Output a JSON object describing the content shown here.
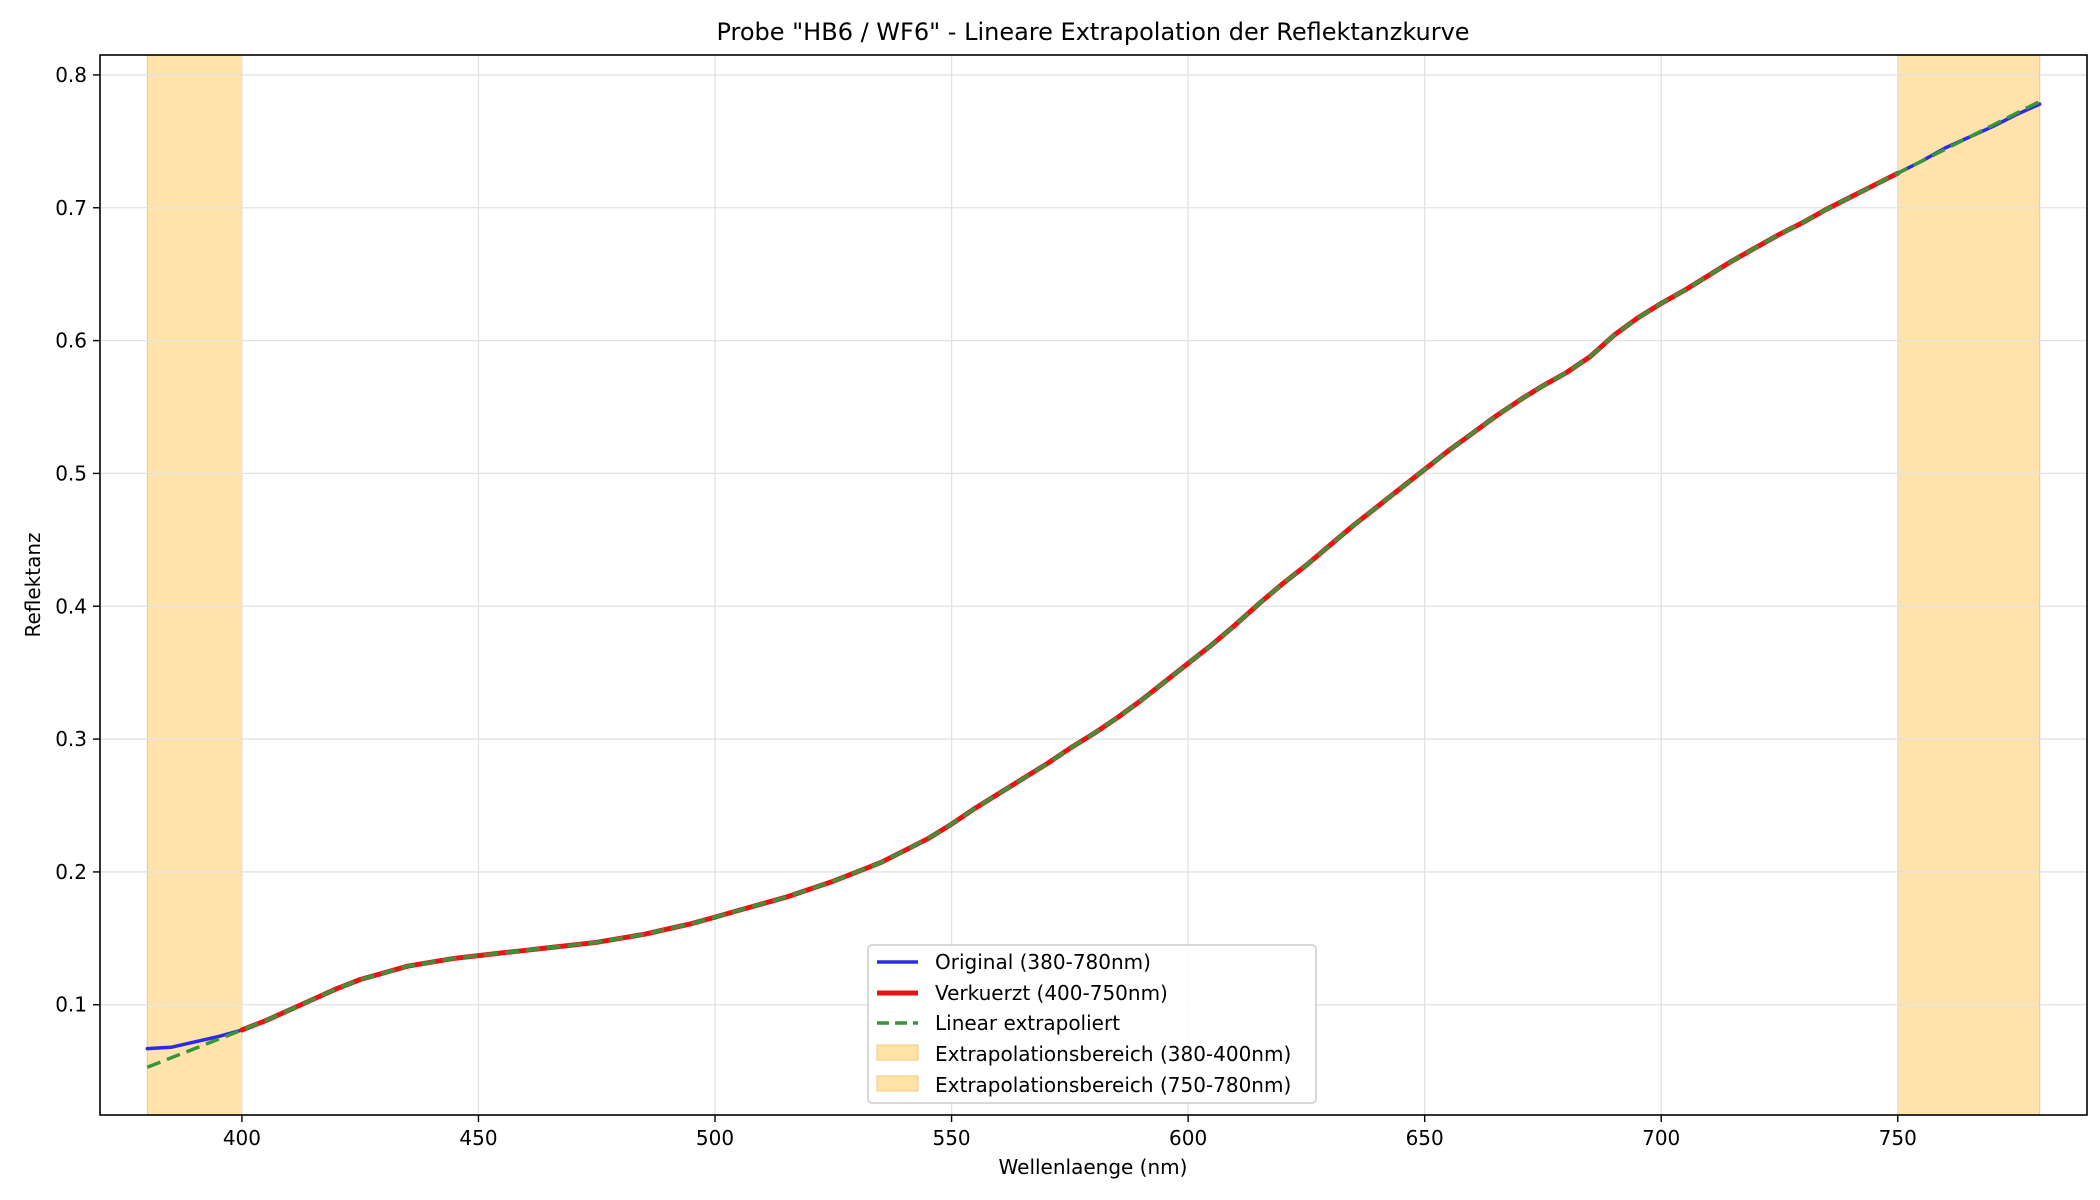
{
  "chart_data": {
    "type": "line",
    "title": "Probe \"HB6 / WF6\" - Lineare Extrapolation der Reflektanzkurve",
    "xlabel": "Wellenlaenge (nm)",
    "ylabel": "Reflektanz",
    "xlim": [
      370,
      790
    ],
    "ylim": [
      0.017,
      0.815
    ],
    "xticks": [
      400,
      450,
      500,
      550,
      600,
      650,
      700,
      750
    ],
    "yticks": [
      0.1,
      0.2,
      0.3,
      0.4,
      0.5,
      0.6,
      0.7,
      0.8
    ],
    "xtick_labels": [
      "400",
      "450",
      "500",
      "550",
      "600",
      "650",
      "700",
      "750"
    ],
    "ytick_labels": [
      "0.1",
      "0.2",
      "0.3",
      "0.4",
      "0.5",
      "0.6",
      "0.7",
      "0.8"
    ],
    "grid": true,
    "legend_position": "lower-center",
    "regions": [
      {
        "name": "Extrapolationsbereich (380-400nm)",
        "x": [
          380,
          400
        ],
        "color": "#ffe2a6"
      },
      {
        "name": "Extrapolationsbereich (750-780nm)",
        "x": [
          750,
          780
        ],
        "color": "#ffe2a6"
      }
    ],
    "series": [
      {
        "name": "Original (380-780nm)",
        "color": "#2a2aee",
        "style": "solid",
        "width": 3.5,
        "x": [
          380,
          385,
          390,
          395,
          400,
          750,
          755,
          760,
          765,
          770,
          775,
          780
        ],
        "y": [
          0.067,
          0.068,
          0.072,
          0.076,
          0.081,
          0.726,
          0.735,
          0.745,
          0.753,
          0.761,
          0.77,
          0.778
        ]
      },
      {
        "name": "Verkuerzt (400-750nm)",
        "color": "#ee1111",
        "style": "solid",
        "width": 5,
        "x": [
          400,
          405,
          410,
          415,
          420,
          425,
          430,
          435,
          440,
          445,
          450,
          455,
          460,
          465,
          470,
          475,
          480,
          485,
          490,
          495,
          500,
          505,
          510,
          515,
          520,
          525,
          530,
          535,
          540,
          545,
          550,
          555,
          560,
          565,
          570,
          575,
          580,
          585,
          590,
          595,
          600,
          605,
          610,
          615,
          620,
          625,
          630,
          635,
          640,
          645,
          650,
          655,
          660,
          665,
          670,
          675,
          680,
          685,
          690,
          695,
          700,
          705,
          710,
          715,
          720,
          725,
          730,
          735,
          740,
          745,
          750
        ],
        "y": [
          0.081,
          0.088,
          0.096,
          0.104,
          0.112,
          0.119,
          0.124,
          0.129,
          0.132,
          0.135,
          0.137,
          0.139,
          0.141,
          0.143,
          0.145,
          0.147,
          0.15,
          0.153,
          0.157,
          0.161,
          0.166,
          0.171,
          0.176,
          0.181,
          0.187,
          0.193,
          0.2,
          0.207,
          0.216,
          0.225,
          0.236,
          0.248,
          0.259,
          0.27,
          0.281,
          0.293,
          0.304,
          0.316,
          0.329,
          0.343,
          0.357,
          0.371,
          0.386,
          0.402,
          0.417,
          0.431,
          0.446,
          0.461,
          0.475,
          0.489,
          0.503,
          0.517,
          0.53,
          0.543,
          0.555,
          0.566,
          0.576,
          0.588,
          0.604,
          0.617,
          0.628,
          0.638,
          0.649,
          0.66,
          0.67,
          0.68,
          0.689,
          0.699,
          0.708,
          0.717,
          0.726
        ]
      },
      {
        "name": "Linear extrapoliert",
        "color": "#3a943a",
        "style": "dashed",
        "width": 3.5,
        "x": [
          380,
          385,
          390,
          395,
          400,
          405,
          410,
          415,
          420,
          425,
          430,
          435,
          440,
          445,
          450,
          455,
          460,
          465,
          470,
          475,
          480,
          485,
          490,
          495,
          500,
          505,
          510,
          515,
          520,
          525,
          530,
          535,
          540,
          545,
          550,
          555,
          560,
          565,
          570,
          575,
          580,
          585,
          590,
          595,
          600,
          605,
          610,
          615,
          620,
          625,
          630,
          635,
          640,
          645,
          650,
          655,
          660,
          665,
          670,
          675,
          680,
          685,
          690,
          695,
          700,
          705,
          710,
          715,
          720,
          725,
          730,
          735,
          740,
          745,
          750,
          755,
          760,
          765,
          770,
          775,
          780
        ],
        "y": [
          0.053,
          0.06,
          0.067,
          0.074,
          0.081,
          0.088,
          0.096,
          0.104,
          0.112,
          0.119,
          0.124,
          0.129,
          0.132,
          0.135,
          0.137,
          0.139,
          0.141,
          0.143,
          0.145,
          0.147,
          0.15,
          0.153,
          0.157,
          0.161,
          0.166,
          0.171,
          0.176,
          0.181,
          0.187,
          0.193,
          0.2,
          0.207,
          0.216,
          0.225,
          0.236,
          0.248,
          0.259,
          0.27,
          0.281,
          0.293,
          0.304,
          0.316,
          0.329,
          0.343,
          0.357,
          0.371,
          0.386,
          0.402,
          0.417,
          0.431,
          0.446,
          0.461,
          0.475,
          0.489,
          0.503,
          0.517,
          0.53,
          0.543,
          0.555,
          0.566,
          0.576,
          0.588,
          0.604,
          0.617,
          0.628,
          0.638,
          0.649,
          0.66,
          0.67,
          0.68,
          0.689,
          0.699,
          0.708,
          0.717,
          0.726,
          0.735,
          0.744,
          0.753,
          0.762,
          0.771,
          0.78
        ]
      }
    ]
  }
}
